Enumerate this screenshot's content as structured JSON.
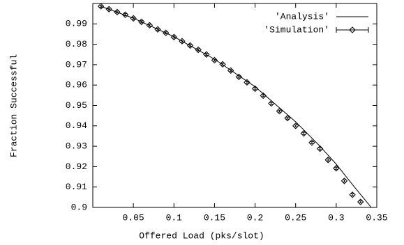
{
  "chart_data": {
    "type": "line",
    "xlabel": "Offered Load (pks/slot)",
    "ylabel": "Fraction Successful",
    "xlim": [
      0,
      0.35
    ],
    "ylim": [
      0.9,
      1.0
    ],
    "xticks": [
      0.05,
      0.1,
      0.15,
      0.2,
      0.25,
      0.3,
      0.35
    ],
    "yticks": [
      0.9,
      0.91,
      0.92,
      0.93,
      0.94,
      0.95,
      0.96,
      0.97,
      0.98,
      0.99
    ],
    "legend": "top-right",
    "series": [
      {
        "name": "'Analysis'",
        "color": "#000000",
        "style": "line",
        "x": [
          0.01,
          0.05,
          0.1,
          0.15,
          0.2,
          0.25,
          0.28,
          0.3,
          0.32,
          0.34,
          0.343
        ],
        "values": [
          0.9986,
          0.9928,
          0.9837,
          0.9727,
          0.9592,
          0.942,
          0.93,
          0.9212,
          0.9112,
          0.9015,
          0.9
        ]
      },
      {
        "name": "'Simulation'",
        "color": "#000000",
        "style": "points-errorbars",
        "x": [
          0.01,
          0.02,
          0.03,
          0.04,
          0.05,
          0.06,
          0.07,
          0.08,
          0.09,
          0.1,
          0.11,
          0.12,
          0.13,
          0.14,
          0.15,
          0.16,
          0.17,
          0.18,
          0.19,
          0.2,
          0.21,
          0.22,
          0.23,
          0.24,
          0.25,
          0.26,
          0.27,
          0.28,
          0.29,
          0.3,
          0.31,
          0.32,
          0.33
        ],
        "values": [
          0.9986,
          0.9972,
          0.9958,
          0.9945,
          0.9927,
          0.991,
          0.9893,
          0.9873,
          0.9856,
          0.9835,
          0.9815,
          0.9794,
          0.9773,
          0.975,
          0.9722,
          0.9702,
          0.9671,
          0.964,
          0.9613,
          0.9582,
          0.9548,
          0.951,
          0.9472,
          0.9438,
          0.94,
          0.9363,
          0.9318,
          0.9288,
          0.9233,
          0.9192,
          0.913,
          0.9062,
          0.9027
        ],
        "errors": [
          0.0005,
          0.0005,
          0.0005,
          0.0005,
          0.0005,
          0.0005,
          0.0005,
          0.0005,
          0.0005,
          0.0005,
          0.0005,
          0.0005,
          0.0005,
          0.0005,
          0.0005,
          0.0005,
          0.0005,
          0.0005,
          0.0005,
          0.0005,
          0.0005,
          0.0005,
          0.0005,
          0.0005,
          0.0005,
          0.0005,
          0.0005,
          0.0005,
          0.0005,
          0.0005,
          0.0005,
          0.0005,
          0.0005
        ]
      }
    ]
  }
}
